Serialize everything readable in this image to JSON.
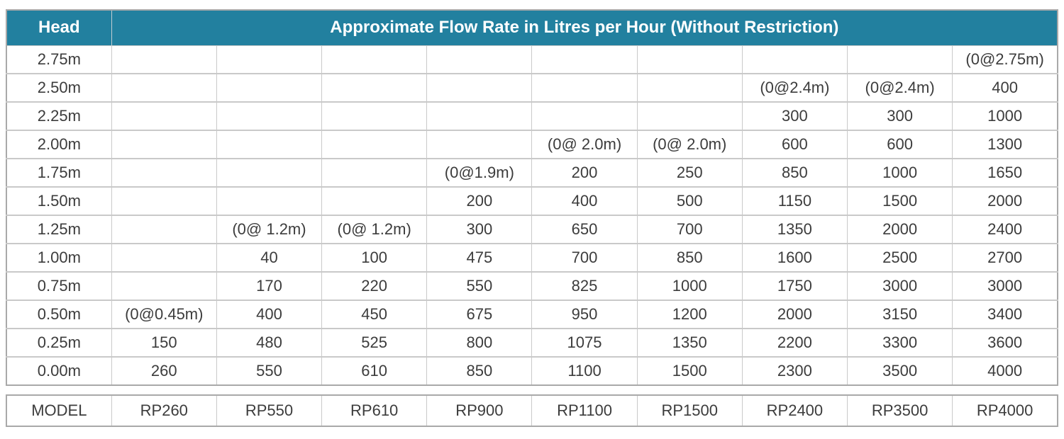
{
  "chart_data": {
    "type": "table",
    "title": "Approximate Flow Rate in Litres per Hour (Without Restriction)",
    "head_label": "Head",
    "model_label": "MODEL",
    "models": [
      "RP260",
      "RP550",
      "RP610",
      "RP900",
      "RP1100",
      "RP1500",
      "RP2400",
      "RP3500",
      "RP4000"
    ],
    "head_values": [
      "2.75m",
      "2.50m",
      "2.25m",
      "2.00m",
      "1.75m",
      "1.50m",
      "1.25m",
      "1.00m",
      "0.75m",
      "0.50m",
      "0.25m",
      "0.00m"
    ],
    "rows": [
      [
        "",
        "",
        "",
        "",
        "",
        "",
        "",
        "",
        "(0@2.75m)"
      ],
      [
        "",
        "",
        "",
        "",
        "",
        "",
        "(0@2.4m)",
        "(0@2.4m)",
        "400"
      ],
      [
        "",
        "",
        "",
        "",
        "",
        "",
        "300",
        "300",
        "1000"
      ],
      [
        "",
        "",
        "",
        "",
        "(0@ 2.0m)",
        "(0@ 2.0m)",
        "600",
        "600",
        "1300"
      ],
      [
        "",
        "",
        "",
        "(0@1.9m)",
        "200",
        "250",
        "850",
        "1000",
        "1650"
      ],
      [
        "",
        "",
        "",
        "200",
        "400",
        "500",
        "1150",
        "1500",
        "2000"
      ],
      [
        "",
        "(0@ 1.2m)",
        "(0@ 1.2m)",
        "300",
        "650",
        "700",
        "1350",
        "2000",
        "2400"
      ],
      [
        "",
        "40",
        "100",
        "475",
        "700",
        "850",
        "1600",
        "2500",
        "2700"
      ],
      [
        "",
        "170",
        "220",
        "550",
        "825",
        "1000",
        "1750",
        "3000",
        "3000"
      ],
      [
        "(0@0.45m)",
        "400",
        "450",
        "675",
        "950",
        "1200",
        "2000",
        "3150",
        "3400"
      ],
      [
        "150",
        "480",
        "525",
        "800",
        "1075",
        "1350",
        "2200",
        "3300",
        "3600"
      ],
      [
        "260",
        "550",
        "610",
        "850",
        "1100",
        "1500",
        "2300",
        "3500",
        "4000"
      ]
    ],
    "layout_hints": {
      "columns_total": 10,
      "header_bg": "#22809F",
      "header_text_color": "#ffffff",
      "body_text_color": "#3c3c3c",
      "grid_color": "#c9c9c9",
      "outer_border_color": "#a9a9a9"
    }
  }
}
